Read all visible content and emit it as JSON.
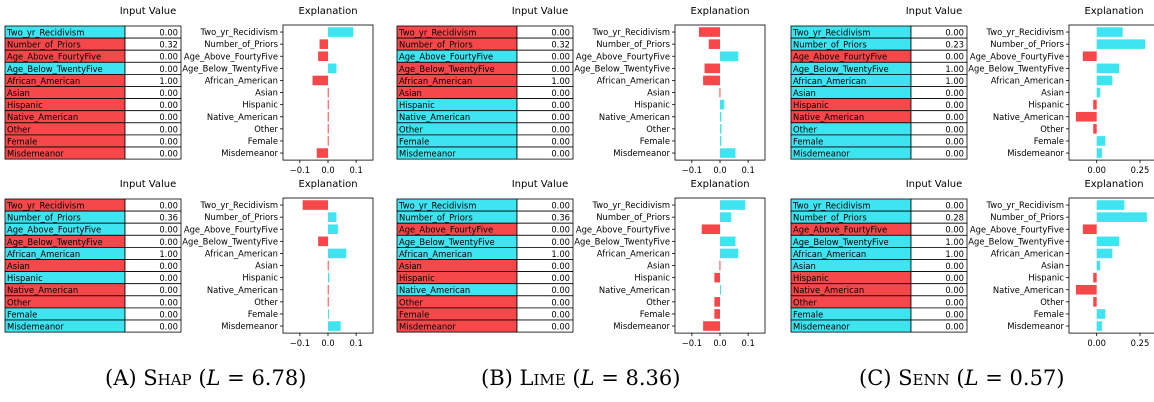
{
  "colors": {
    "positive": "#3ee4f0",
    "negative": "#f6474a",
    "axis": "#000000"
  },
  "panel_titles": {
    "input": "Input Value",
    "explanation": "Explanation"
  },
  "captions": [
    {
      "letter": "(A)",
      "method": "Shap",
      "loss_label": "L",
      "eq": " = ",
      "value": "6.78"
    },
    {
      "letter": "(B)",
      "method": "Lime",
      "loss_label": "L",
      "eq": " = ",
      "value": "8.36"
    },
    {
      "letter": "(C)",
      "method": "Senn",
      "loss_label": "L",
      "eq": " = ",
      "value": "0.57"
    }
  ],
  "chart_data": [
    {
      "type": "bar",
      "orientation": "horizontal",
      "method": "Shap",
      "sample": 1,
      "title": "Explanation",
      "table_title": "Input Value",
      "categories": [
        "Two_yr_Recidivism",
        "Number_of_Priors",
        "Age_Above_FourtyFive",
        "Age_Below_TwentyFive",
        "African_American",
        "Asian",
        "Hispanic",
        "Native_American",
        "Other",
        "Female",
        "Misdemeanor"
      ],
      "input_values": [
        "0.00",
        "0.32",
        "0.00",
        "0.00",
        "1.00",
        "0.00",
        "0.00",
        "0.00",
        "0.00",
        "0.00",
        "0.00"
      ],
      "input_signs": [
        "pos",
        "neg",
        "neg",
        "pos",
        "neg",
        "neg",
        "neg",
        "neg",
        "neg",
        "neg",
        "neg"
      ],
      "values": [
        0.09,
        -0.03,
        -0.035,
        0.03,
        -0.055,
        -0.001,
        -0.001,
        -0.001,
        -0.001,
        -0.001,
        -0.04
      ],
      "xlim": [
        -0.16,
        0.16
      ],
      "xticks": [
        -0.1,
        0.0,
        0.1
      ],
      "xtick_labels": [
        "−0.1",
        "0.0",
        "0.1"
      ]
    },
    {
      "type": "bar",
      "orientation": "horizontal",
      "method": "Lime",
      "sample": 1,
      "title": "Explanation",
      "table_title": "Input Value",
      "categories": [
        "Two_yr_Recidivism",
        "Number_of_Priors",
        "Age_Above_FourtyFive",
        "Age_Below_TwentyFive",
        "African_American",
        "Asian",
        "Hispanic",
        "Native_American",
        "Other",
        "Female",
        "Misdemeanor"
      ],
      "input_values": [
        "0.00",
        "0.32",
        "0.00",
        "0.00",
        "1.00",
        "0.00",
        "0.00",
        "0.00",
        "0.00",
        "0.00",
        "0.00"
      ],
      "input_signs": [
        "neg",
        "neg",
        "pos",
        "neg",
        "neg",
        "neg",
        "pos",
        "pos",
        "pos",
        "pos",
        "pos"
      ],
      "values": [
        -0.075,
        -0.04,
        0.065,
        -0.055,
        -0.06,
        -0.002,
        0.015,
        0.005,
        0.005,
        0.005,
        0.055
      ],
      "xlim": [
        -0.16,
        0.16
      ],
      "xticks": [
        -0.1,
        0.0,
        0.1
      ],
      "xtick_labels": [
        "−0.1",
        "0.0",
        "0.1"
      ]
    },
    {
      "type": "bar",
      "orientation": "horizontal",
      "method": "Senn",
      "sample": 1,
      "title": "Explanation",
      "table_title": "Input Value",
      "categories": [
        "Two_yr_Recidivism",
        "Number_of_Priors",
        "Age_Above_FourtyFive",
        "Age_Below_TwentyFive",
        "African_American",
        "Asian",
        "Hispanic",
        "Native_American",
        "Other",
        "Female",
        "Misdemeanor"
      ],
      "input_values": [
        "0.00",
        "0.23",
        "0.00",
        "1.00",
        "1.00",
        "0.00",
        "0.00",
        "0.00",
        "0.00",
        "0.00",
        "0.00"
      ],
      "input_signs": [
        "pos",
        "pos",
        "neg",
        "pos",
        "pos",
        "pos",
        "neg",
        "neg",
        "pos",
        "pos",
        "pos"
      ],
      "values": [
        0.15,
        0.28,
        -0.08,
        0.13,
        0.09,
        0.02,
        -0.02,
        -0.12,
        -0.02,
        0.05,
        0.03
      ],
      "xlim": [
        -0.16,
        0.36
      ],
      "xticks": [
        0.0,
        0.25
      ],
      "xtick_labels": [
        "0.00",
        "0.25"
      ]
    },
    {
      "type": "bar",
      "orientation": "horizontal",
      "method": "Shap",
      "sample": 2,
      "title": "Explanation",
      "table_title": "Input Value",
      "categories": [
        "Two_yr_Recidivism",
        "Number_of_Priors",
        "Age_Above_FourtyFive",
        "Age_Below_TwentyFive",
        "African_American",
        "Asian",
        "Hispanic",
        "Native_American",
        "Other",
        "Female",
        "Misdemeanor"
      ],
      "input_values": [
        "0.00",
        "0.36",
        "0.00",
        "0.00",
        "1.00",
        "0.00",
        "0.00",
        "0.00",
        "0.00",
        "0.00",
        "0.00"
      ],
      "input_signs": [
        "neg",
        "pos",
        "pos",
        "neg",
        "pos",
        "neg",
        "pos",
        "neg",
        "neg",
        "pos",
        "pos"
      ],
      "values": [
        -0.09,
        0.03,
        0.035,
        -0.035,
        0.065,
        -0.001,
        0.005,
        -0.001,
        -0.001,
        0.001,
        0.045
      ],
      "xlim": [
        -0.16,
        0.16
      ],
      "xticks": [
        -0.1,
        0.0,
        0.1
      ],
      "xtick_labels": [
        "−0.1",
        "0.0",
        "0.1"
      ]
    },
    {
      "type": "bar",
      "orientation": "horizontal",
      "method": "Lime",
      "sample": 2,
      "title": "Explanation",
      "table_title": "Input Value",
      "categories": [
        "Two_yr_Recidivism",
        "Number_of_Priors",
        "Age_Above_FourtyFive",
        "Age_Below_TwentyFive",
        "African_American",
        "Asian",
        "Hispanic",
        "Native_American",
        "Other",
        "Female",
        "Misdemeanor"
      ],
      "input_values": [
        "0.00",
        "0.36",
        "0.00",
        "0.00",
        "1.00",
        "0.00",
        "0.00",
        "0.00",
        "0.00",
        "0.00",
        "0.00"
      ],
      "input_signs": [
        "pos",
        "pos",
        "neg",
        "pos",
        "pos",
        "neg",
        "neg",
        "pos",
        "neg",
        "neg",
        "neg"
      ],
      "values": [
        0.09,
        0.04,
        -0.065,
        0.055,
        0.065,
        -0.002,
        -0.02,
        0.002,
        -0.02,
        -0.02,
        -0.06
      ],
      "xlim": [
        -0.16,
        0.16
      ],
      "xticks": [
        -0.1,
        0.0,
        0.1
      ],
      "xtick_labels": [
        "−0.1",
        "0.0",
        "0.1"
      ]
    },
    {
      "type": "bar",
      "orientation": "horizontal",
      "method": "Senn",
      "sample": 2,
      "title": "Explanation",
      "table_title": "Input Value",
      "categories": [
        "Two_yr_Recidivism",
        "Number_of_Priors",
        "Age_Above_FourtyFive",
        "Age_Below_TwentyFive",
        "African_American",
        "Asian",
        "Hispanic",
        "Native_American",
        "Other",
        "Female",
        "Misdemeanor"
      ],
      "input_values": [
        "0.00",
        "0.28",
        "0.00",
        "1.00",
        "1.00",
        "0.00",
        "0.00",
        "0.00",
        "0.00",
        "0.00",
        "0.00"
      ],
      "input_signs": [
        "pos",
        "pos",
        "neg",
        "pos",
        "pos",
        "pos",
        "neg",
        "neg",
        "neg",
        "pos",
        "pos"
      ],
      "values": [
        0.16,
        0.29,
        -0.08,
        0.13,
        0.09,
        0.02,
        -0.02,
        -0.12,
        -0.02,
        0.05,
        0.03
      ],
      "xlim": [
        -0.16,
        0.36
      ],
      "xticks": [
        0.0,
        0.25
      ],
      "xtick_labels": [
        "0.00",
        "0.25"
      ]
    }
  ]
}
